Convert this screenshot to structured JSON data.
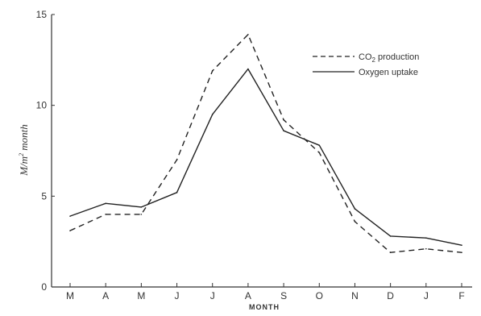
{
  "chart_data": {
    "type": "line",
    "xlabel": "MONTH",
    "ylabel_base": "M/m",
    "ylabel_sup": "2",
    "ylabel_tail": " month",
    "categories": [
      "M",
      "A",
      "M",
      "J",
      "J",
      "A",
      "S",
      "O",
      "N",
      "D",
      "J",
      "F"
    ],
    "ylim": [
      0,
      15
    ],
    "yticks": [
      "0",
      "5",
      "10",
      "15"
    ],
    "grid": false,
    "legend_position": "top-right",
    "series": [
      {
        "name": "CO2 production",
        "name_main": "CO",
        "name_sub": "2",
        "name_tail": " production",
        "style": "dashed",
        "values": [
          3.1,
          4.0,
          4.0,
          7.0,
          11.9,
          13.9,
          9.2,
          7.4,
          3.6,
          1.9,
          2.1,
          1.9
        ]
      },
      {
        "name": "Oxygen uptake",
        "style": "solid",
        "values": [
          3.9,
          4.6,
          4.4,
          5.2,
          9.5,
          12.0,
          8.6,
          7.8,
          4.3,
          2.8,
          2.7,
          2.3
        ]
      }
    ]
  }
}
